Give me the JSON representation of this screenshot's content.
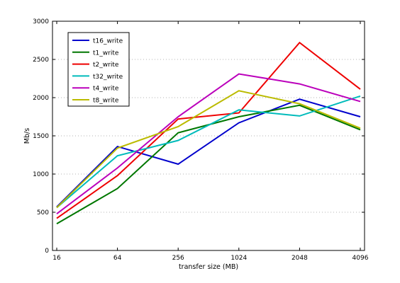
{
  "chart_data": {
    "type": "line",
    "xlabel": "transfer size (MB)",
    "ylabel": "Mb/s",
    "categories": [
      "16",
      "64",
      "256",
      "1024",
      "2048",
      "4096"
    ],
    "ylim": [
      0,
      3000
    ],
    "yticks": [
      "0",
      "500",
      "1000",
      "1500",
      "2000",
      "2500",
      "3000"
    ],
    "grid": "horizontal dotted",
    "legend_position": "top-left",
    "series": [
      {
        "name": "t16_write",
        "color": "#0000cc",
        "values": [
          570,
          1360,
          1130,
          1670,
          1980,
          1750
        ]
      },
      {
        "name": "t1_write",
        "color": "#007700",
        "values": [
          350,
          810,
          1540,
          1750,
          1900,
          1580
        ]
      },
      {
        "name": "t2_write",
        "color": "#ee0000",
        "values": [
          420,
          980,
          1720,
          1800,
          2720,
          2110
        ]
      },
      {
        "name": "t32_write",
        "color": "#00bbbb",
        "values": [
          560,
          1240,
          1440,
          1840,
          1760,
          2020
        ]
      },
      {
        "name": "t4_write",
        "color": "#bb00bb",
        "values": [
          480,
          1080,
          1750,
          2310,
          2180,
          1950
        ]
      },
      {
        "name": "t8_write",
        "color": "#bbbb00",
        "values": [
          560,
          1340,
          1620,
          2090,
          1920,
          1600
        ]
      }
    ]
  }
}
